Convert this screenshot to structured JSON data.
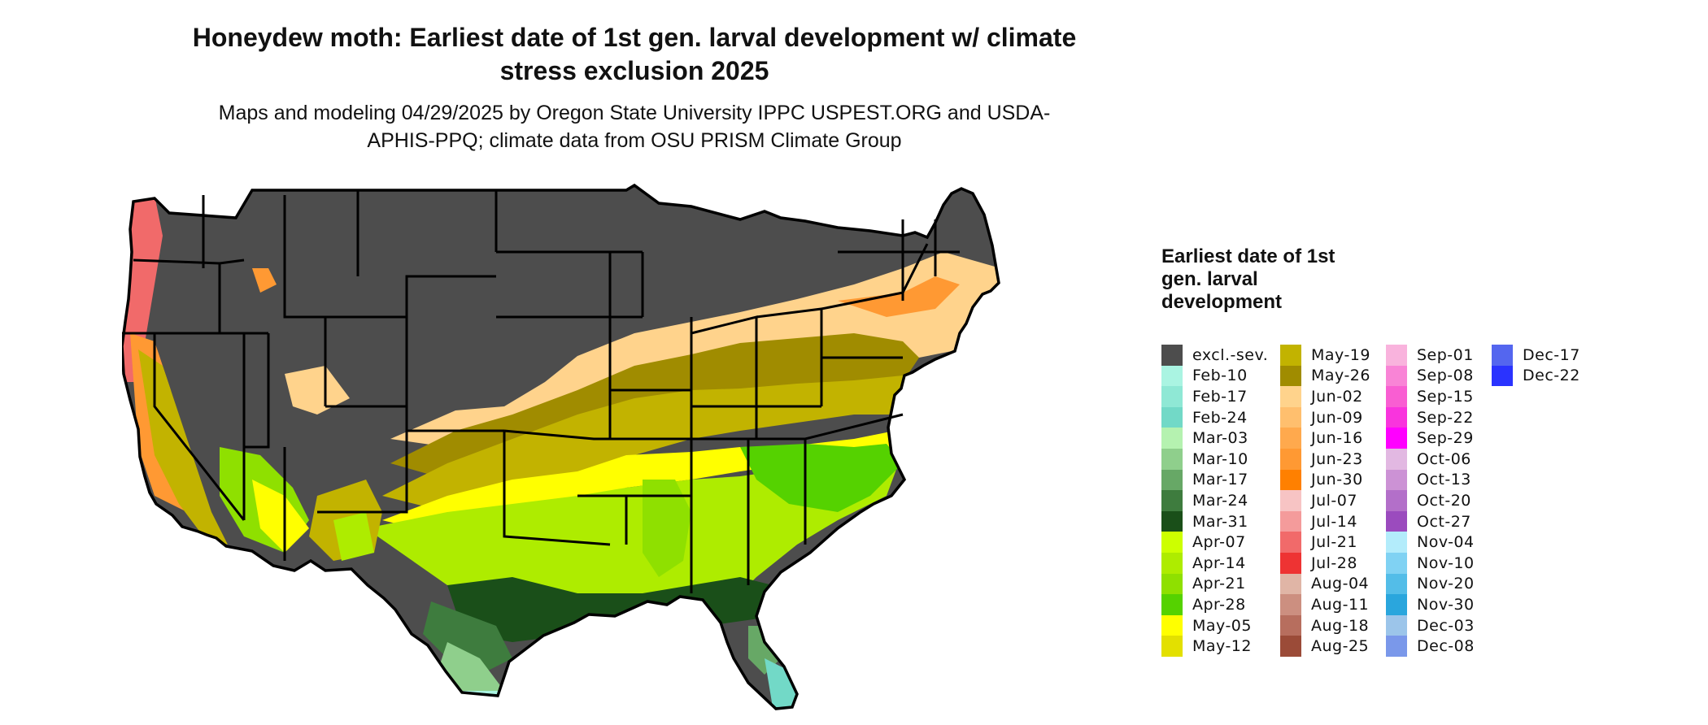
{
  "title": "Honeydew moth: Earliest date of 1st gen. larval development w/ climate stress exclusion 2025",
  "subtitle": "Maps and modeling 04/29/2025 by Oregon State University IPPC USPEST.ORG and USDA-APHIS-PPQ; climate data from OSU PRISM Climate Group",
  "legend": {
    "title": "Earliest date of 1st gen. larval development",
    "columns": [
      [
        {
          "label": "excl.-sev.",
          "color": "#4d4d4d"
        },
        {
          "label": "Feb-10",
          "color": "#aaf4e2"
        },
        {
          "label": "Feb-17",
          "color": "#8fe8d5"
        },
        {
          "label": "Feb-24",
          "color": "#72d9c7"
        },
        {
          "label": "Mar-03",
          "color": "#b5f2b0"
        },
        {
          "label": "Mar-10",
          "color": "#8fcf8c"
        },
        {
          "label": "Mar-17",
          "color": "#67a866"
        },
        {
          "label": "Mar-24",
          "color": "#3e7c3e"
        },
        {
          "label": "Mar-31",
          "color": "#1a4f19"
        },
        {
          "label": "Apr-07",
          "color": "#cdff00"
        },
        {
          "label": "Apr-14",
          "color": "#aeec00"
        },
        {
          "label": "Apr-21",
          "color": "#8fe000"
        },
        {
          "label": "Apr-28",
          "color": "#55d200"
        },
        {
          "label": "May-05",
          "color": "#ffff00"
        },
        {
          "label": "May-12",
          "color": "#e3e000"
        }
      ],
      [
        {
          "label": "May-19",
          "color": "#c2b300"
        },
        {
          "label": "May-26",
          "color": "#a08c00"
        },
        {
          "label": "Jun-02",
          "color": "#ffd38c"
        },
        {
          "label": "Jun-09",
          "color": "#ffbf6e"
        },
        {
          "label": "Jun-16",
          "color": "#ffa94d"
        },
        {
          "label": "Jun-23",
          "color": "#ff9933"
        },
        {
          "label": "Jun-30",
          "color": "#ff8000"
        },
        {
          "label": "Jul-07",
          "color": "#f7c4c4"
        },
        {
          "label": "Jul-14",
          "color": "#f49b9b"
        },
        {
          "label": "Jul-21",
          "color": "#f16a6a"
        },
        {
          "label": "Jul-28",
          "color": "#ee3333"
        },
        {
          "label": "Aug-04",
          "color": "#e0b5a6"
        },
        {
          "label": "Aug-11",
          "color": "#cc8f80"
        },
        {
          "label": "Aug-18",
          "color": "#b76e5e"
        },
        {
          "label": "Aug-25",
          "color": "#9b4b38"
        }
      ],
      [
        {
          "label": "Sep-01",
          "color": "#f9b3dd"
        },
        {
          "label": "Sep-08",
          "color": "#f984d6"
        },
        {
          "label": "Sep-15",
          "color": "#f95ed2"
        },
        {
          "label": "Sep-22",
          "color": "#f934dd"
        },
        {
          "label": "Sep-29",
          "color": "#ff00ff"
        },
        {
          "label": "Oct-06",
          "color": "#e2b8e2"
        },
        {
          "label": "Oct-13",
          "color": "#cc92d5"
        },
        {
          "label": "Oct-20",
          "color": "#b36fc9"
        },
        {
          "label": "Oct-27",
          "color": "#9b4bbe"
        },
        {
          "label": "Nov-04",
          "color": "#b3ecfb"
        },
        {
          "label": "Nov-10",
          "color": "#80d2f3"
        },
        {
          "label": "Nov-20",
          "color": "#53bde8"
        },
        {
          "label": "Nov-30",
          "color": "#2aa6dd"
        },
        {
          "label": "Dec-03",
          "color": "#9cc5ea"
        },
        {
          "label": "Dec-08",
          "color": "#7a98ea"
        }
      ],
      [
        {
          "label": "Dec-17",
          "color": "#5466ef"
        },
        {
          "label": "Dec-22",
          "color": "#2a33ff"
        }
      ]
    ]
  }
}
